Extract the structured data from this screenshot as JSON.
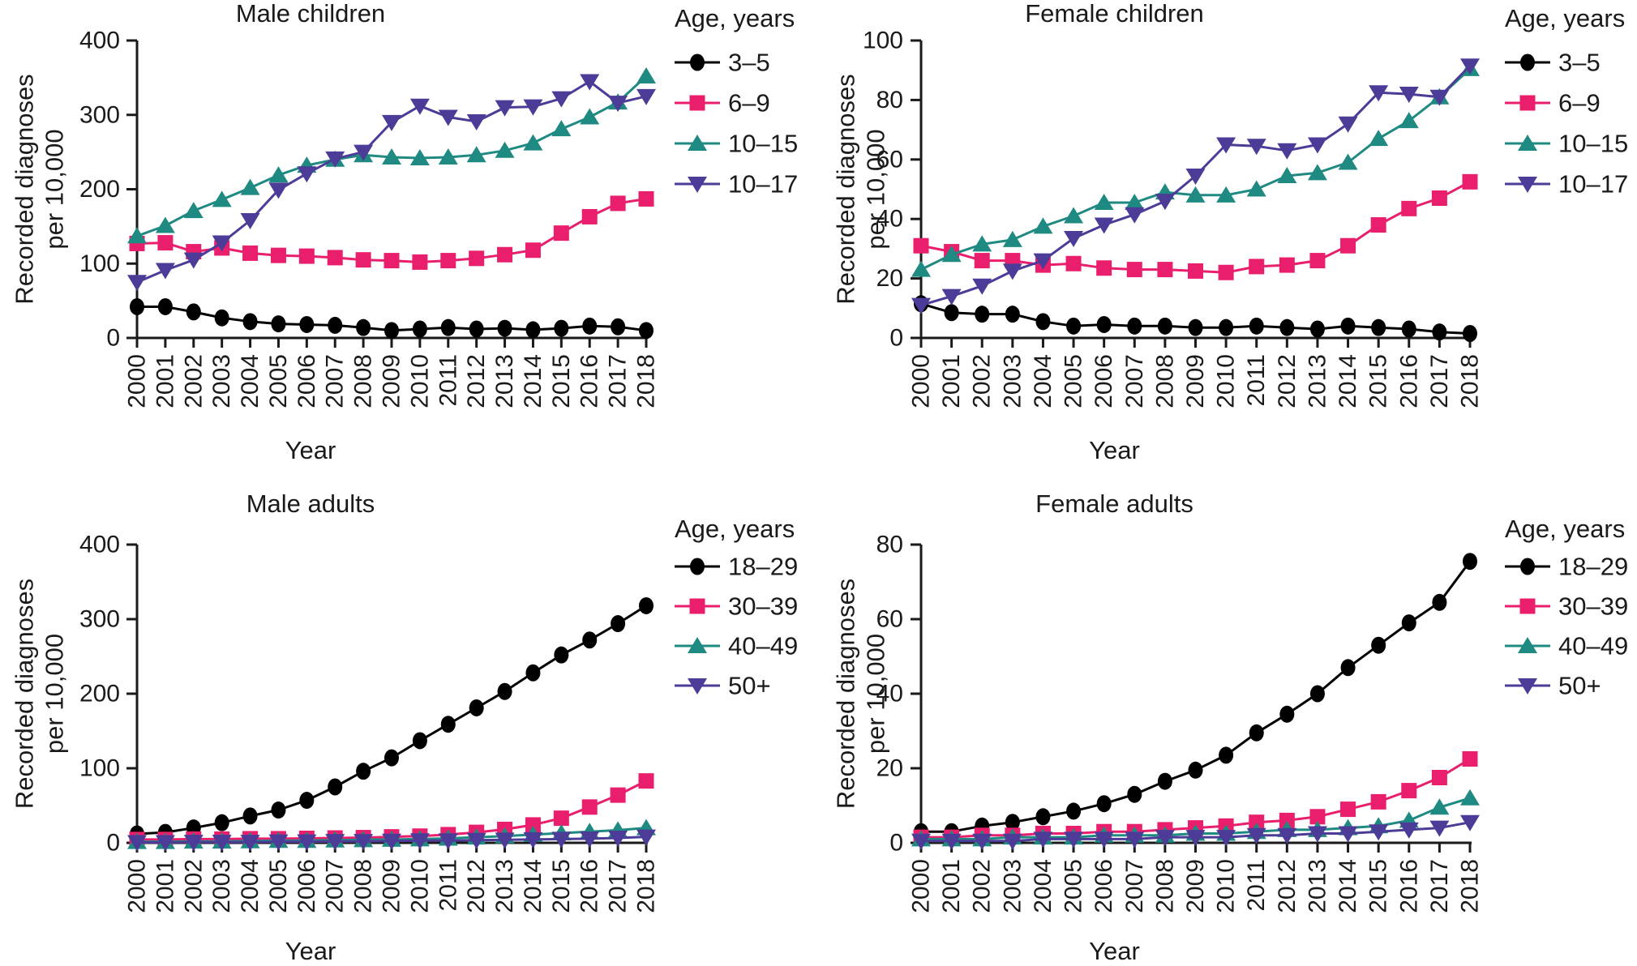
{
  "figure": {
    "xlabel": "Year",
    "ylabel_line1": "Recorded diagnoses",
    "ylabel_line2": "per 10,000",
    "legend_title": "Age, years",
    "years": [
      "2000",
      "2001",
      "2002",
      "2003",
      "2004",
      "2005",
      "2006",
      "2007",
      "2008",
      "2009",
      "2010",
      "2011",
      "2012",
      "2013",
      "2014",
      "2015",
      "2016",
      "2017",
      "2018"
    ],
    "colors": {
      "black": "#000000",
      "pink": "#E91E6D",
      "teal": "#1F8A82",
      "purple": "#4C3B97"
    }
  },
  "chart_data": [
    {
      "type": "line",
      "title": "Male children",
      "position": "top-left",
      "xlabel": "Year",
      "ylabel": "Recorded diagnoses per 10,000",
      "legend_title": "Age, years",
      "legend_position": "right",
      "grid": false,
      "ylim": [
        0,
        400
      ],
      "yticks": [
        0,
        100,
        200,
        300,
        400
      ],
      "series": [
        {
          "name": "3–5",
          "marker": "circle",
          "color_key": "black",
          "values": [
            42,
            42,
            35,
            27,
            22,
            19,
            18,
            17,
            14,
            10,
            12,
            14,
            12,
            13,
            11,
            13,
            16,
            15,
            10
          ]
        },
        {
          "name": "6–9",
          "marker": "square",
          "color_key": "pink",
          "values": [
            127,
            128,
            116,
            121,
            114,
            111,
            110,
            108,
            105,
            104,
            102,
            104,
            107,
            112,
            118,
            141,
            163,
            181,
            187
          ]
        },
        {
          "name": "10–15",
          "marker": "triangle-up",
          "color_key": "teal",
          "values": [
            137,
            151,
            171,
            186,
            202,
            219,
            232,
            240,
            246,
            243,
            242,
            243,
            246,
            252,
            262,
            281,
            297,
            317,
            352
          ]
        },
        {
          "name": "10–17",
          "marker": "triangle-down",
          "color_key": "purple",
          "values": [
            75,
            91,
            105,
            128,
            158,
            199,
            221,
            241,
            250,
            290,
            312,
            297,
            291,
            310,
            311,
            322,
            345,
            316,
            325
          ]
        }
      ]
    },
    {
      "type": "line",
      "title": "Female children",
      "position": "top-right",
      "xlabel": "Year",
      "ylabel": "Recorded diagnoses per 10,000",
      "legend_title": "Age, years",
      "legend_position": "right",
      "grid": false,
      "ylim": [
        0,
        100
      ],
      "yticks": [
        0,
        20,
        40,
        60,
        80,
        100
      ],
      "series": [
        {
          "name": "3–5",
          "marker": "circle",
          "color_key": "black",
          "values": [
            11.5,
            8.5,
            8,
            8,
            5.5,
            4,
            4.5,
            4,
            4,
            3.5,
            3.5,
            4,
            3.5,
            3,
            4,
            3.5,
            3,
            2,
            1.5
          ]
        },
        {
          "name": "6–9",
          "marker": "square",
          "color_key": "pink",
          "values": [
            31,
            29,
            26,
            26,
            24.5,
            25,
            23.5,
            23,
            23,
            22.5,
            22,
            24,
            24.5,
            26,
            31,
            38,
            43.5,
            47,
            52.5
          ]
        },
        {
          "name": "10–15",
          "marker": "triangle-up",
          "color_key": "teal",
          "values": [
            23,
            28,
            31.5,
            33,
            37.5,
            41,
            45.5,
            45.5,
            49,
            48,
            48,
            50,
            54.5,
            55.5,
            59,
            67,
            73,
            81,
            90.5
          ]
        },
        {
          "name": "10–17",
          "marker": "triangle-down",
          "color_key": "purple",
          "values": [
            11,
            14,
            17.5,
            22.5,
            26,
            33.5,
            38,
            41.5,
            46,
            54.5,
            65,
            64.5,
            63,
            65,
            72,
            82.5,
            82,
            81,
            91.5
          ]
        }
      ]
    },
    {
      "type": "line",
      "title": "Male adults",
      "position": "bottom-left",
      "xlabel": "Year",
      "ylabel": "Recorded diagnoses per 10,000",
      "legend_title": "Age, years",
      "legend_position": "right",
      "grid": false,
      "ylim": [
        0,
        400
      ],
      "yticks": [
        0,
        100,
        200,
        300,
        400
      ],
      "series": [
        {
          "name": "18–29",
          "marker": "circle",
          "color_key": "black",
          "values": [
            12,
            14,
            20,
            27,
            36,
            44,
            57,
            75,
            96,
            114,
            137,
            159,
            181,
            203,
            228,
            252,
            272,
            294,
            318
          ]
        },
        {
          "name": "30–39",
          "marker": "square",
          "color_key": "pink",
          "values": [
            4.5,
            4.5,
            5,
            5,
            5.5,
            5.5,
            6,
            6.5,
            7,
            8,
            9,
            11,
            14,
            18,
            24,
            33,
            48,
            64,
            83
          ]
        },
        {
          "name": "40–49",
          "marker": "triangle-up",
          "color_key": "teal",
          "values": [
            1.5,
            1.5,
            2,
            2,
            2.5,
            3,
            3,
            3.5,
            4,
            4.5,
            5,
            6,
            7.5,
            9,
            11,
            13,
            15,
            17,
            20
          ]
        },
        {
          "name": "50+",
          "marker": "triangle-down",
          "color_key": "purple",
          "values": [
            0.5,
            0.5,
            1,
            1,
            1,
            1.5,
            1.5,
            2,
            2,
            2.5,
            3,
            3,
            3.5,
            4,
            4.5,
            5,
            5.5,
            6.5,
            8
          ]
        }
      ]
    },
    {
      "type": "line",
      "title": "Female adults",
      "position": "bottom-right",
      "xlabel": "Year",
      "ylabel": "Recorded diagnoses per 10,000",
      "legend_title": "Age, years",
      "legend_position": "right",
      "grid": false,
      "ylim": [
        0,
        80
      ],
      "yticks": [
        0,
        20,
        40,
        60,
        80
      ],
      "series": [
        {
          "name": "18–29",
          "marker": "circle",
          "color_key": "black",
          "values": [
            3,
            3,
            4.5,
            5.5,
            7,
            8.5,
            10.5,
            13,
            16.5,
            19.5,
            23.5,
            29.5,
            34.5,
            40,
            47,
            53,
            59,
            64.5,
            75.5
          ]
        },
        {
          "name": "30–39",
          "marker": "square",
          "color_key": "pink",
          "values": [
            1.5,
            1.5,
            2,
            2,
            2.5,
            2.5,
            3,
            3,
            3.5,
            4,
            4.5,
            5.5,
            6,
            7,
            9,
            11,
            14,
            17.5,
            22.5
          ]
        },
        {
          "name": "40–49",
          "marker": "triangle-up",
          "color_key": "teal",
          "values": [
            1,
            1,
            1,
            1.5,
            1.5,
            1.5,
            2,
            2,
            2,
            2.5,
            2.5,
            3,
            3.5,
            3.5,
            4,
            4.5,
            6,
            9.5,
            12
          ]
        },
        {
          "name": "50+",
          "marker": "triangle-down",
          "color_key": "purple",
          "values": [
            0.5,
            0.5,
            0.5,
            0.5,
            1,
            1,
            1,
            1,
            1.5,
            1.5,
            1.5,
            2,
            2,
            2.5,
            2.5,
            3,
            3.5,
            4,
            5.5
          ]
        }
      ]
    }
  ]
}
